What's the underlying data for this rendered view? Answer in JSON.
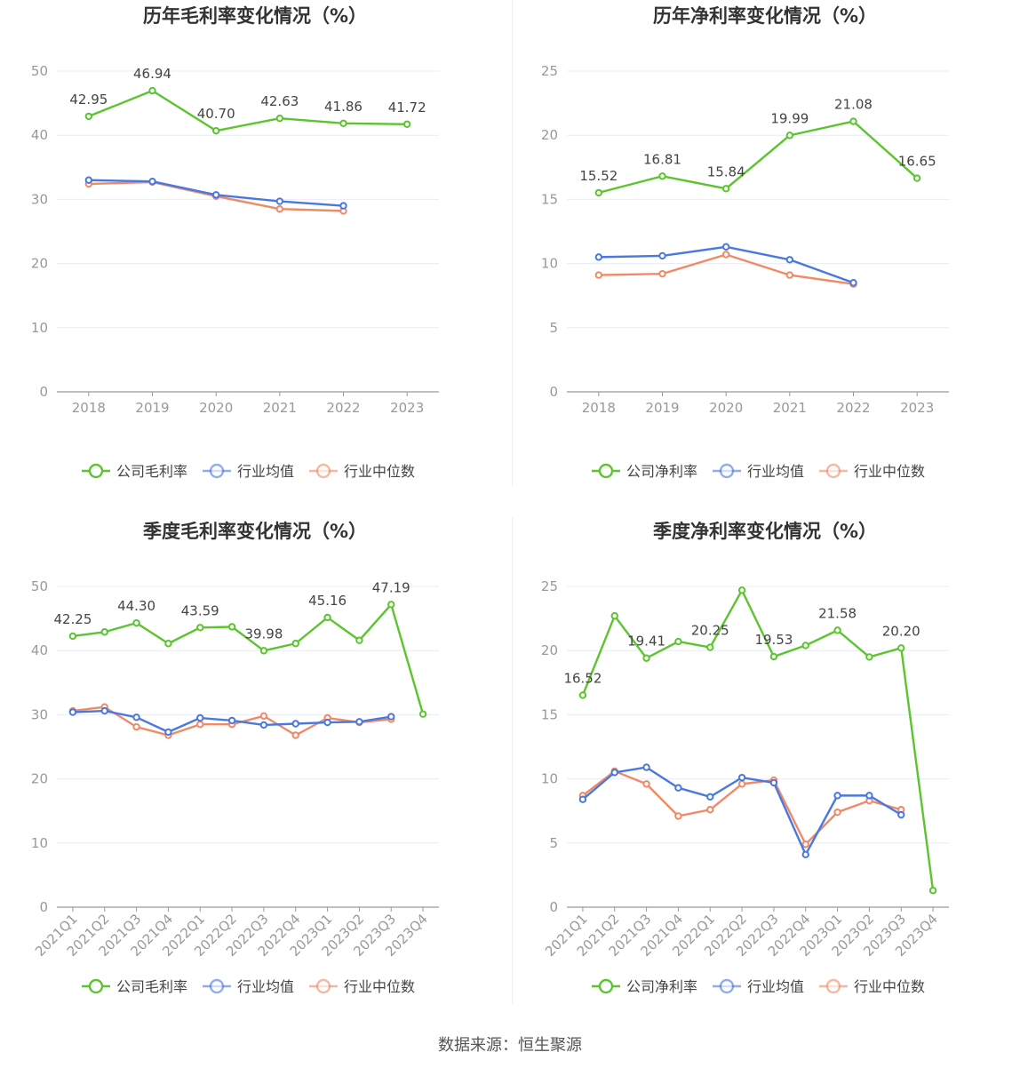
{
  "footer": {
    "source": "数据来源：恒生聚源"
  },
  "colors": {
    "company": "#5cc42e",
    "avg": "#4a78e0",
    "median": "#f08a66",
    "grid": "#e8ecf4",
    "axis": "#999999"
  },
  "chart_data": [
    {
      "type": "line",
      "title": "历年毛利率变化情况（%）",
      "categories": [
        "2018",
        "2019",
        "2020",
        "2021",
        "2022",
        "2023"
      ],
      "ylim": [
        0,
        50
      ],
      "yticks": [
        0,
        10,
        20,
        30,
        40,
        50
      ],
      "legend_position": "bottom",
      "series": [
        {
          "name": "公司毛利率",
          "key": "company",
          "values": [
            42.95,
            46.94,
            40.7,
            42.63,
            41.86,
            41.72
          ],
          "labels": [
            "42.95",
            "46.94",
            "40.70",
            "42.63",
            "41.86",
            "41.72"
          ]
        },
        {
          "name": "行业均值",
          "key": "avg",
          "values": [
            33.0,
            32.8,
            30.7,
            29.7,
            29.0,
            null
          ]
        },
        {
          "name": "行业中位数",
          "key": "median",
          "values": [
            32.4,
            32.7,
            30.5,
            28.5,
            28.2,
            null
          ]
        }
      ]
    },
    {
      "type": "line",
      "title": "历年净利率变化情况（%）",
      "categories": [
        "2018",
        "2019",
        "2020",
        "2021",
        "2022",
        "2023"
      ],
      "ylim": [
        0,
        25
      ],
      "yticks": [
        0,
        5,
        10,
        15,
        20,
        25
      ],
      "legend_position": "bottom",
      "series": [
        {
          "name": "公司净利率",
          "key": "company",
          "values": [
            15.52,
            16.81,
            15.84,
            19.99,
            21.08,
            16.65
          ],
          "labels": [
            "15.52",
            "16.81",
            "15.84",
            "19.99",
            "21.08",
            "16.65"
          ]
        },
        {
          "name": "行业均值",
          "key": "avg",
          "values": [
            10.5,
            10.6,
            11.3,
            10.3,
            8.5,
            null
          ]
        },
        {
          "name": "行业中位数",
          "key": "median",
          "values": [
            9.1,
            9.2,
            10.7,
            9.1,
            8.4,
            null
          ]
        }
      ]
    },
    {
      "type": "line",
      "title": "季度毛利率变化情况（%）",
      "categories": [
        "2021Q1",
        "2021Q2",
        "2021Q3",
        "2021Q4",
        "2022Q1",
        "2022Q2",
        "2022Q3",
        "2022Q4",
        "2023Q1",
        "2023Q2",
        "2023Q3",
        "2023Q4"
      ],
      "ylim": [
        0,
        50
      ],
      "yticks": [
        0,
        10,
        20,
        30,
        40,
        50
      ],
      "legend_position": "bottom",
      "series": [
        {
          "name": "公司毛利率",
          "key": "company",
          "values": [
            42.25,
            42.9,
            44.3,
            41.1,
            43.59,
            43.7,
            39.98,
            41.1,
            45.16,
            41.6,
            47.19,
            30.1
          ],
          "labels": [
            "42.25",
            "",
            "44.30",
            "",
            "43.59",
            "",
            "39.98",
            "",
            "45.16",
            "",
            "47.19",
            ""
          ]
        },
        {
          "name": "行业均值",
          "key": "avg",
          "values": [
            30.4,
            30.6,
            29.6,
            27.3,
            29.5,
            29.1,
            28.4,
            28.6,
            28.8,
            28.9,
            29.7,
            null
          ]
        },
        {
          "name": "行业中位数",
          "key": "median",
          "values": [
            30.6,
            31.2,
            28.1,
            26.8,
            28.5,
            28.5,
            29.8,
            26.8,
            29.5,
            28.8,
            29.3,
            null
          ]
        }
      ]
    },
    {
      "type": "line",
      "title": "季度净利率变化情况（%）",
      "categories": [
        "2021Q1",
        "2021Q2",
        "2021Q3",
        "2021Q4",
        "2022Q1",
        "2022Q2",
        "2022Q3",
        "2022Q4",
        "2023Q1",
        "2023Q2",
        "2023Q3",
        "2023Q4"
      ],
      "ylim": [
        0,
        25
      ],
      "yticks": [
        0,
        5,
        10,
        15,
        20,
        25
      ],
      "legend_position": "bottom",
      "series": [
        {
          "name": "公司净利率",
          "key": "company",
          "values": [
            16.52,
            22.7,
            19.41,
            20.7,
            20.25,
            24.7,
            19.53,
            20.4,
            21.58,
            19.5,
            20.2,
            1.3
          ],
          "labels": [
            "16.52",
            "",
            "19.41",
            "",
            "20.25",
            "",
            "19.53",
            "",
            "21.58",
            "",
            "20.20",
            ""
          ]
        },
        {
          "name": "行业均值",
          "key": "avg",
          "values": [
            8.4,
            10.5,
            10.9,
            9.3,
            8.6,
            10.1,
            9.7,
            4.1,
            8.7,
            8.7,
            7.2,
            null
          ]
        },
        {
          "name": "行业中位数",
          "key": "median",
          "values": [
            8.7,
            10.6,
            9.6,
            7.1,
            7.6,
            9.6,
            9.9,
            4.9,
            7.4,
            8.3,
            7.6,
            null
          ]
        }
      ]
    }
  ]
}
